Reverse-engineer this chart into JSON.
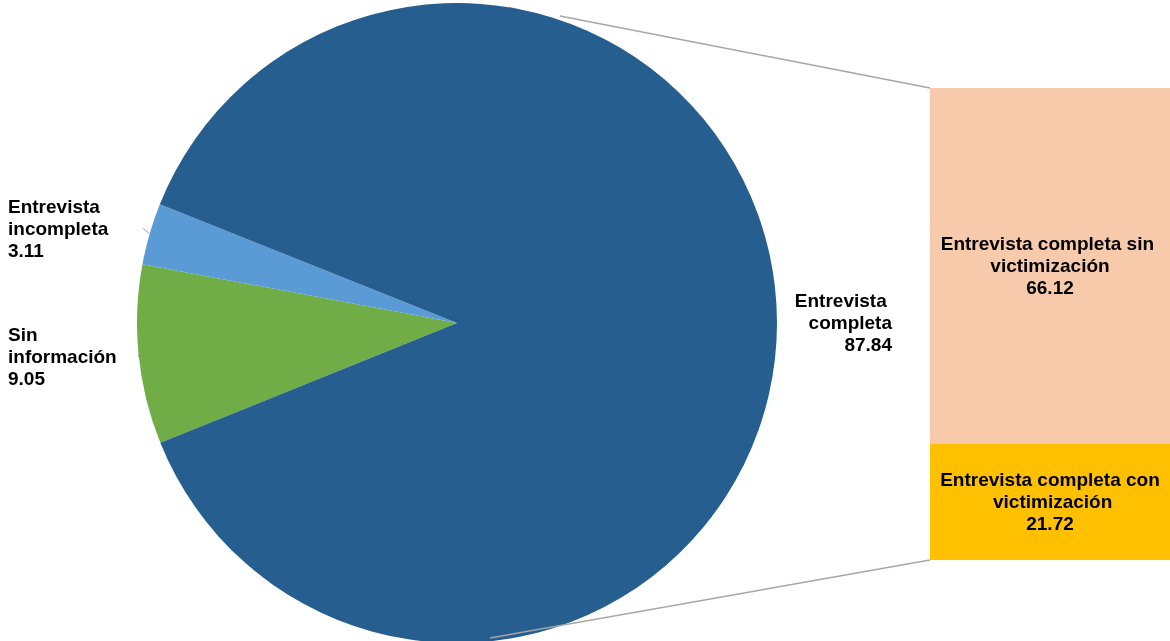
{
  "chart_data": [
    {
      "type": "pie",
      "categories": [
        "Sin información",
        "Entrevista incompleta",
        "Entrevista completa"
      ],
      "values": [
        9.05,
        3.11,
        87.84
      ],
      "colors": [
        "#70ad47",
        "#5b9bd5",
        "#255e8f"
      ],
      "data_labels": true
    },
    {
      "type": "bar",
      "stacked": true,
      "categories": [
        null
      ],
      "data_labels": true,
      "series": [
        {
          "name": "Entrevista completa con victimización",
          "color": "#ffc000",
          "values": [
            21.72
          ]
        },
        {
          "name": "Entrevista completa sin victimización",
          "color": "#f7caac",
          "values": [
            66.12
          ]
        }
      ]
    }
  ]
}
